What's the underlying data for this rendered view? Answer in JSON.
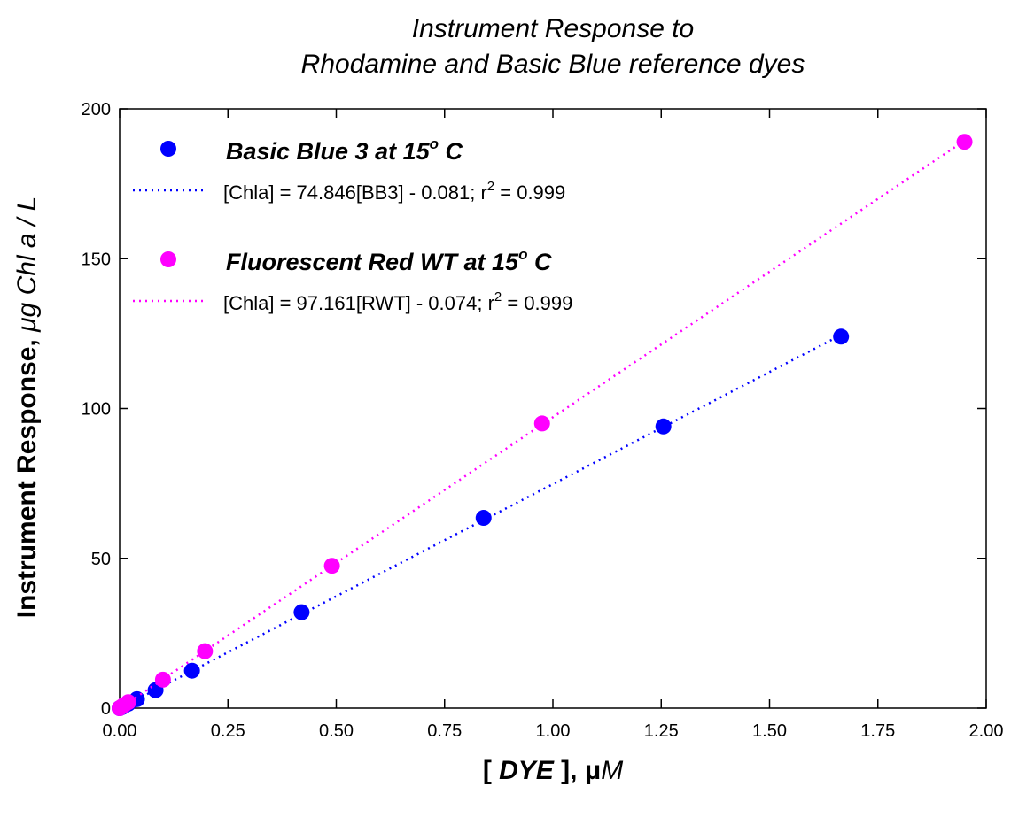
{
  "chart_data": {
    "type": "scatter",
    "title": [
      "Instrument Response to",
      "Rhodamine and Basic Blue reference dyes"
    ],
    "x_label": [
      "[ ",
      "DYE",
      " ], μ",
      "M"
    ],
    "y_label": [
      "Instrument Response, ",
      "μg Chl a / L"
    ],
    "xlim": [
      0,
      2
    ],
    "ylim": [
      0,
      200
    ],
    "xticks": [
      {
        "value": 0,
        "label": "0.00"
      },
      {
        "value": 0.25,
        "label": "0.25"
      },
      {
        "value": 0.5,
        "label": "0.50"
      },
      {
        "value": 0.75,
        "label": "0.75"
      },
      {
        "value": 1,
        "label": "1.00"
      },
      {
        "value": 1.25,
        "label": "1.25"
      },
      {
        "value": 1.5,
        "label": "1.50"
      },
      {
        "value": 1.75,
        "label": "1.75"
      },
      {
        "value": 2,
        "label": "2.00"
      }
    ],
    "yticks": [
      0,
      50,
      100,
      150,
      200
    ],
    "series": [
      {
        "name": [
          "Basic Blue 3 at 15",
          "o",
          " C"
        ],
        "color": "#0000ff",
        "x": [
          0,
          0.005,
          0.01,
          0.02,
          0.04,
          0.083,
          0.167,
          0.42,
          0.84,
          1.255,
          1.665
        ],
        "values": [
          0,
          0.3,
          0.7,
          1.5,
          3,
          6,
          12.5,
          32,
          63.5,
          94,
          124
        ],
        "fit": {
          "slope": 74.846,
          "intercept": -0.081
        },
        "fit_label": [
          "[Chla] = 74.846[BB3] - 0.081; r",
          "2",
          " = 0.999"
        ]
      },
      {
        "name": [
          "Fluorescent Red WT at 15",
          "o",
          " C"
        ],
        "color": "#ff00ff",
        "x": [
          0,
          0.005,
          0.01,
          0.02,
          0.1,
          0.197,
          0.49,
          0.975,
          1.95
        ],
        "values": [
          0,
          0.5,
          1,
          2,
          9.5,
          19,
          47.5,
          95,
          189
        ],
        "fit": {
          "slope": 97.161,
          "intercept": -0.074
        },
        "fit_label": [
          "[Chla] = 97.161[RWT] - 0.074; r",
          "2",
          " = 0.999"
        ]
      }
    ]
  }
}
